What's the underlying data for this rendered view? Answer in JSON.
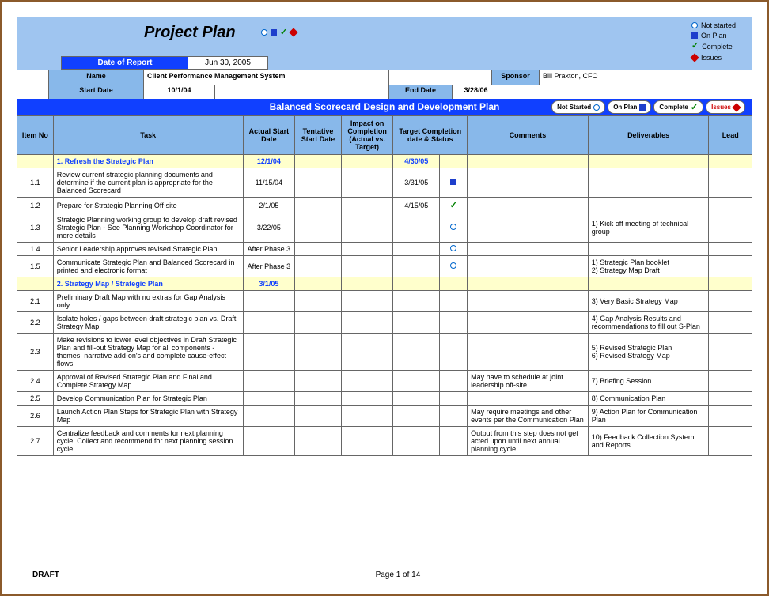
{
  "colors": {
    "header_bg": "#9fc5f0",
    "band_bg": "#1040ff",
    "label_bg": "#88b8ea",
    "section_bg": "#ffffcc",
    "section_text": "#1040ff",
    "border": "#666666",
    "frame": "#8b5a2b",
    "not_started": "#0066cc",
    "on_plan": "#1e3fcc",
    "complete": "#008000",
    "issues": "#cc0000"
  },
  "title": "Project Plan",
  "legend": {
    "not_started": "Not started",
    "on_plan": "On Plan",
    "complete": "Complete",
    "issues": "Issues"
  },
  "date_of_report": {
    "label": "Date of Report",
    "value": "Jun 30, 2005"
  },
  "fields": {
    "name_label": "Name",
    "name_value": "Client Performance Management System",
    "sponsor_label": "Sponsor",
    "sponsor_value": "Bill Praxton, CFO",
    "start_date_label": "Start Date",
    "start_date_value": "10/1/04",
    "end_date_label": "End Date",
    "end_date_value": "3/28/06"
  },
  "section_band": {
    "title": "Balanced Scorecard Design and Development Plan",
    "buttons": {
      "not_started": "Not Started",
      "on_plan": "On Plan",
      "complete": "Complete",
      "issues": "Issues"
    }
  },
  "headers": {
    "item_no": "Item No",
    "task": "Task",
    "actual_start": "Actual Start Date",
    "tentative_start": "Tentative Start Date",
    "impact": "Impact on Completion (Actual vs. Target)",
    "target_completion": "Target Completion date & Status",
    "comments": "Comments",
    "deliverables": "Deliverables",
    "lead": "Lead"
  },
  "sections": [
    {
      "label": "1. Refresh the Strategic Plan",
      "actual_start": "12/1/04",
      "target": "4/30/05",
      "rows": [
        {
          "item": "1.1",
          "task": "Review current strategic planning documents and determine if the current plan is appropriate for the Balanced Scorecard",
          "actual_start": "11/15/04",
          "target": "3/31/05",
          "status": "on_plan"
        },
        {
          "item": "1.2",
          "task": "Prepare for Strategic Planning Off-site",
          "actual_start": "2/1/05",
          "target": "4/15/05",
          "status": "complete"
        },
        {
          "item": "1.3",
          "task": "Strategic Planning working group to develop draft revised Strategic Plan - See Planning Workshop Coordinator for more details",
          "actual_start": "3/22/05",
          "status": "not_started",
          "deliverables": "1) Kick off meeting of technical group"
        },
        {
          "item": "1.4",
          "task": "Senior Leadership approves revised Strategic Plan",
          "actual_start": "After Phase 3",
          "status": "not_started"
        },
        {
          "item": "1.5",
          "task": "Communicate Strategic Plan and Balanced Scorecard in printed and electronic format",
          "actual_start": "After Phase 3",
          "status": "not_started",
          "deliverables": "1) Strategic Plan booklet\n2) Strategy Map Draft"
        }
      ]
    },
    {
      "label": "2. Strategy Map / Strategic Plan",
      "actual_start": "3/1/05",
      "rows": [
        {
          "item": "2.1",
          "task": "Preliminary Draft Map with no extras for Gap Analysis only",
          "deliverables": "3) Very Basic Strategy Map"
        },
        {
          "item": "2.2",
          "task": "Isolate holes / gaps between draft strategic plan vs. Draft Strategy Map",
          "deliverables": "4) Gap Analysis Results and recommendations to fill out S-Plan"
        },
        {
          "item": "2.3",
          "task": "Make revisions to lower level objectives in Draft Strategic Plan and fill-out Strategy Map for all components - themes, narrative add-on's and complete cause-effect flows.",
          "deliverables": "5) Revised Strategic Plan\n6) Revised Strategy Map"
        },
        {
          "item": "2.4",
          "task": "Approval of Revised Strategic Plan and Final and Complete Strategy Map",
          "comments": "May have to schedule at joint leadership off-site",
          "deliverables": "7) Briefing Session"
        },
        {
          "item": "2.5",
          "task": "Develop Communication Plan for Strategic Plan",
          "deliverables": "8) Communication Plan"
        },
        {
          "item": "2.6",
          "task": "Launch Action Plan Steps for Strategic Plan with Strategy Map",
          "comments": "May require meetings and other events per the Communication Plan",
          "deliverables": "9) Action Plan for Communication Plan"
        },
        {
          "item": "2.7",
          "task": "Centralize feedback and comments for next planning cycle. Collect and recommend for next planning session cycle.",
          "comments": "Output from this step does not get acted upon until next annual planning cycle.",
          "deliverables": "10) Feedback Collection System and Reports"
        }
      ]
    }
  ],
  "footer": {
    "left": "DRAFT",
    "center": "Page 1 of 14"
  }
}
